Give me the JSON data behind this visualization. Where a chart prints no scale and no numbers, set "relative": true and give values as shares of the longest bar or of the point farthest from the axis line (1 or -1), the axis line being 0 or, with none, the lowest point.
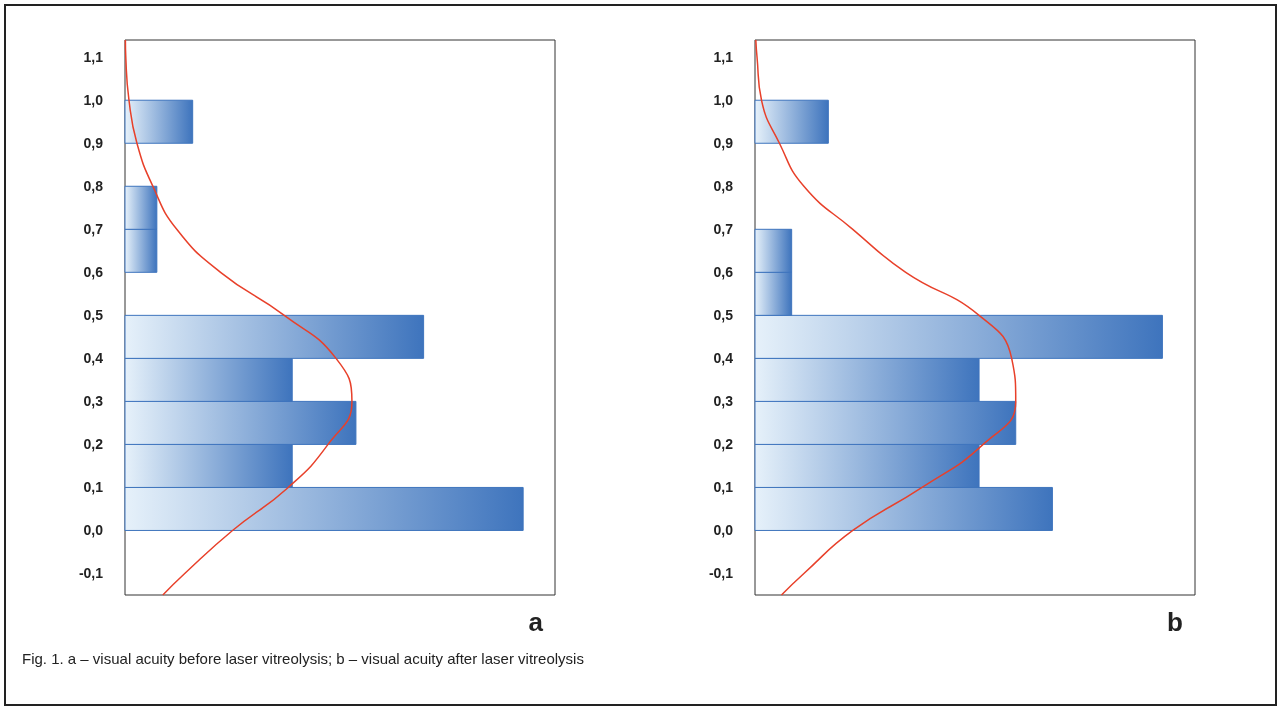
{
  "chart_data": [
    {
      "type": "histogram",
      "orientation": "horizontal",
      "relative": true,
      "bins": [
        0.0,
        0.1,
        0.2,
        0.3,
        0.4,
        0.5,
        0.6,
        0.7,
        0.8,
        0.9,
        1.0
      ],
      "ylim": [
        -0.15,
        1.14
      ],
      "yticks": [
        {
          "value": -0.1,
          "label": "-0,1"
        },
        {
          "value": 0,
          "label": "0,0"
        },
        {
          "value": 0.1,
          "label": "0,1"
        },
        {
          "value": 0.2,
          "label": "0,2"
        },
        {
          "value": 0.3,
          "label": "0,3"
        },
        {
          "value": 0.4,
          "label": "0,4"
        },
        {
          "value": 0.5,
          "label": "0,5"
        },
        {
          "value": 0.6,
          "label": "0,6"
        },
        {
          "value": 0.7,
          "label": "0,7"
        },
        {
          "value": 0.8,
          "label": "0,8"
        },
        {
          "value": 0.9,
          "label": "0,9"
        },
        {
          "value": 1.0,
          "label": "1,0"
        },
        {
          "value": 1.1,
          "label": "1,1"
        }
      ],
      "series": [
        {
          "color": "#3e74bd",
          "values": [
            1,
            0.42,
            0.58,
            0.42,
            0.75,
            0,
            0.08,
            0.08,
            0,
            0.17
          ]
        },
        {
          "type": "line",
          "color": "#e8402a",
          "x": [
            -0.15,
            -0.1,
            0,
            0.1,
            0.2,
            0.3,
            0.4,
            0.5,
            0.6,
            0.7,
            0.8,
            0.9,
            1.0,
            1.1,
            1.14
          ],
          "values": [
            0.095,
            0.15,
            0.27,
            0.41,
            0.51,
            0.57,
            0.53,
            0.4,
            0.24,
            0.13,
            0.07,
            0.03,
            0.01,
            0.002,
            0.001
          ]
        }
      ],
      "marker": "none",
      "annotations": [
        "a"
      ]
    },
    {
      "type": "histogram",
      "orientation": "horizontal",
      "relative": true,
      "bins": [
        0.0,
        0.1,
        0.2,
        0.3,
        0.4,
        0.5,
        0.6,
        0.7,
        0.8,
        0.9,
        1.0
      ],
      "ylim": [
        -0.15,
        1.14
      ],
      "yticks": [
        {
          "value": -0.1,
          "label": "-0,1"
        },
        {
          "value": 0,
          "label": "0,0"
        },
        {
          "value": 0.1,
          "label": "0,1"
        },
        {
          "value": 0.2,
          "label": "0,2"
        },
        {
          "value": 0.3,
          "label": "0,3"
        },
        {
          "value": 0.4,
          "label": "0,4"
        },
        {
          "value": 0.5,
          "label": "0,5"
        },
        {
          "value": 0.6,
          "label": "0,6"
        },
        {
          "value": 0.7,
          "label": "0,7"
        },
        {
          "value": 0.8,
          "label": "0,8"
        },
        {
          "value": 0.9,
          "label": "0,9"
        },
        {
          "value": 1.0,
          "label": "1,0"
        },
        {
          "value": 1.1,
          "label": "1,1"
        }
      ],
      "series": [
        {
          "color": "#3e74bd",
          "values": [
            0.73,
            0.55,
            0.64,
            0.55,
            1,
            0.09,
            0.09,
            0,
            0,
            0.18
          ]
        },
        {
          "type": "line",
          "color": "#e8402a",
          "x": [
            -0.15,
            -0.1,
            0,
            0.1,
            0.2,
            0.3,
            0.4,
            0.5,
            0.6,
            0.7,
            0.8,
            0.9,
            1.0,
            1.1,
            1.14
          ],
          "values": [
            0.065,
            0.12,
            0.24,
            0.41,
            0.56,
            0.64,
            0.63,
            0.55,
            0.37,
            0.24,
            0.12,
            0.06,
            0.016,
            0.005,
            0.002
          ]
        }
      ],
      "marker": "none",
      "annotations": [
        "b",
        "Fig. 1. a – visual acuity before laser vitreolysis; b – visual acuity after laser vitreolysis"
      ]
    }
  ]
}
